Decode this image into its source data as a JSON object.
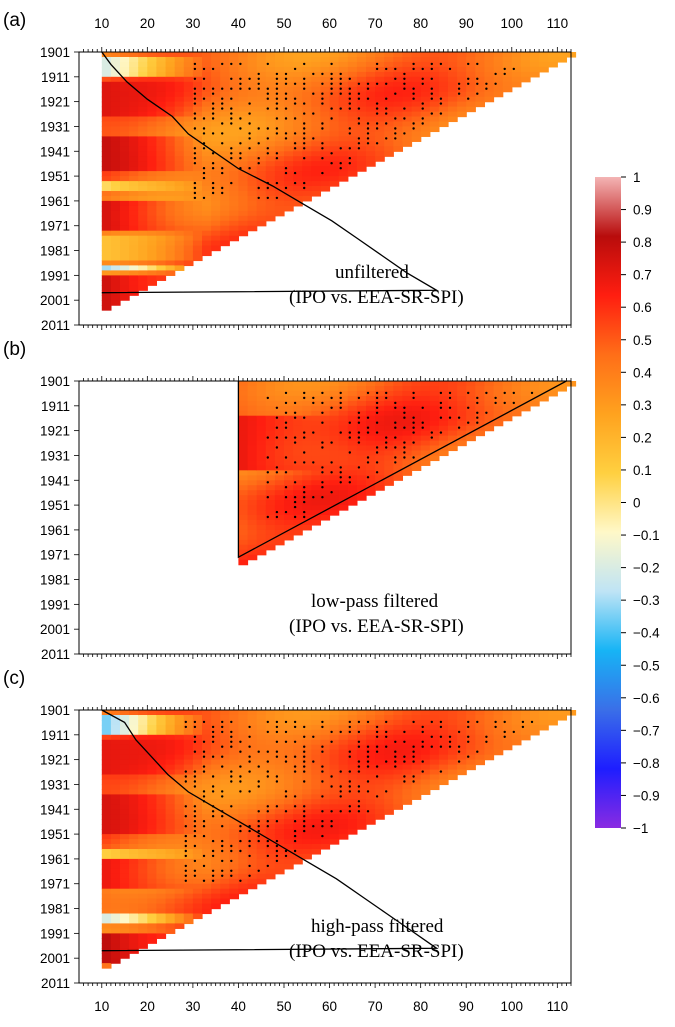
{
  "chart_data": {
    "type": "heatmap",
    "x_axis": {
      "range": [
        5,
        113
      ],
      "ticks": [
        10,
        20,
        30,
        40,
        50,
        60,
        70,
        80,
        90,
        100,
        110
      ]
    },
    "y_axis": {
      "range": [
        1901,
        2011
      ],
      "direction": "downward",
      "ticks": [
        1901,
        1911,
        1921,
        1931,
        1941,
        1951,
        1961,
        1971,
        1981,
        1991,
        2001,
        2011
      ]
    },
    "colorbar": {
      "range": [
        -1,
        1
      ],
      "ticks": [
        "1",
        "0.9",
        "0.8",
        "0.7",
        "0.6",
        "0.5",
        "0.4",
        "0.3",
        "0.2",
        "0.1",
        "0",
        "−0.1",
        "−0.2",
        "−0.3",
        "−0.4",
        "−0.5",
        "−0.6",
        "−0.7",
        "−0.8",
        "−0.9",
        "−1"
      ],
      "colors": [
        "#8a2be2",
        "#1e1eff",
        "#3a6fe8",
        "#17b4f5",
        "#bfe4f5",
        "#fff8c8",
        "#ffd040",
        "#ffa21e",
        "#ff6e18",
        "#ff1e10",
        "#b80c0c",
        "#f4b4b4"
      ]
    },
    "panels": [
      {
        "label": "(a)",
        "annotation": [
          "unfiltered",
          "(IPO vs. EEA-SR-SPI)"
        ],
        "min_window": 10,
        "contour_windows": [
          47,
          50,
          54,
          59,
          62,
          67,
          72,
          79,
          85,
          91,
          96,
          101,
          106,
          112
        ],
        "stipple": "window 30-112, start 1904-1960",
        "base_correlation": 0.45,
        "bands": [
          {
            "start": 1903,
            "end": 1910,
            "value": -0.2
          },
          {
            "start": 1913,
            "end": 1925,
            "value": 0.72
          },
          {
            "start": 1935,
            "end": 1947,
            "value": 0.78
          },
          {
            "start": 1952,
            "end": 1956,
            "value": 0.05
          },
          {
            "start": 1960,
            "end": 1971,
            "value": 0.74
          },
          {
            "start": 1975,
            "end": 1983,
            "value": 0.15
          },
          {
            "start": 1986,
            "end": 1988,
            "value": -0.3
          },
          {
            "start": 1990,
            "end": 2003,
            "value": 0.76
          }
        ]
      },
      {
        "label": "(b)",
        "annotation": [
          "low-pass filtered",
          "(IPO vs. EEA-SR-SPI)"
        ],
        "min_window": 40,
        "contour_windows": [
          40,
          40,
          40,
          40,
          40,
          40,
          40,
          40,
          40,
          40,
          40,
          40,
          40,
          40
        ],
        "stipple": "window 45-112, start 1904-1955",
        "base_correlation": 0.5,
        "bands": [
          {
            "start": 1915,
            "end": 1935,
            "value": 0.68
          }
        ]
      },
      {
        "label": "(c)",
        "annotation": [
          "high-pass filtered",
          "(IPO vs. EEA-SR-SPI)"
        ],
        "min_window": 10,
        "contour_windows": [
          50,
          52,
          55,
          58,
          62,
          68,
          74,
          80,
          86,
          92,
          97,
          102,
          107,
          112
        ],
        "stipple": "window 28-112, start 1904-1970",
        "base_correlation": 0.48,
        "bands": [
          {
            "start": 1903,
            "end": 1910,
            "value": -0.35
          },
          {
            "start": 1913,
            "end": 1925,
            "value": 0.7
          },
          {
            "start": 1935,
            "end": 1950,
            "value": 0.74
          },
          {
            "start": 1956,
            "end": 1959,
            "value": 0.1
          },
          {
            "start": 1961,
            "end": 1972,
            "value": 0.68
          },
          {
            "start": 1983,
            "end": 1986,
            "value": -0.2
          },
          {
            "start": 1990,
            "end": 2002,
            "value": 0.8
          }
        ]
      }
    ]
  }
}
